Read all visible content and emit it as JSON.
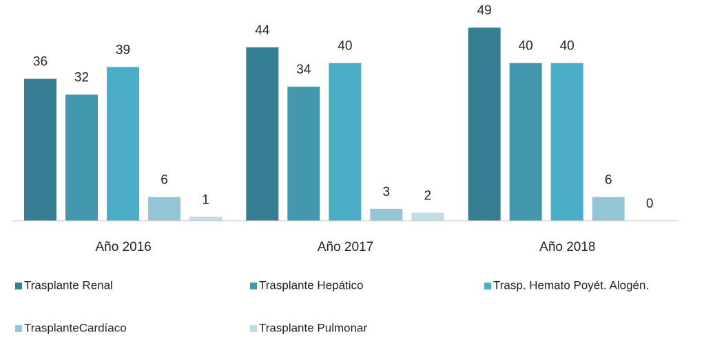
{
  "chart_data": {
    "type": "bar",
    "categories": [
      "Año 2016",
      "Año 2017",
      "Año 2018"
    ],
    "series": [
      {
        "name": "Trasplante Renal",
        "color": "#367f93",
        "values": [
          36,
          44,
          49
        ]
      },
      {
        "name": "Trasplante Hepático",
        "color": "#4397ae",
        "values": [
          32,
          34,
          40
        ]
      },
      {
        "name": "Trasp. Hemato Poyét. Alogén.",
        "color": "#4bacc6",
        "values": [
          39,
          40,
          40
        ]
      },
      {
        "name": "TrasplanteCardíaco",
        "color": "#93c5d4",
        "values": [
          6,
          3,
          6
        ]
      },
      {
        "name": "Trasplante Pulmonar",
        "color": "#c0dde6",
        "values": [
          1,
          2,
          0
        ]
      }
    ],
    "ylim": [
      0,
      56
    ]
  }
}
